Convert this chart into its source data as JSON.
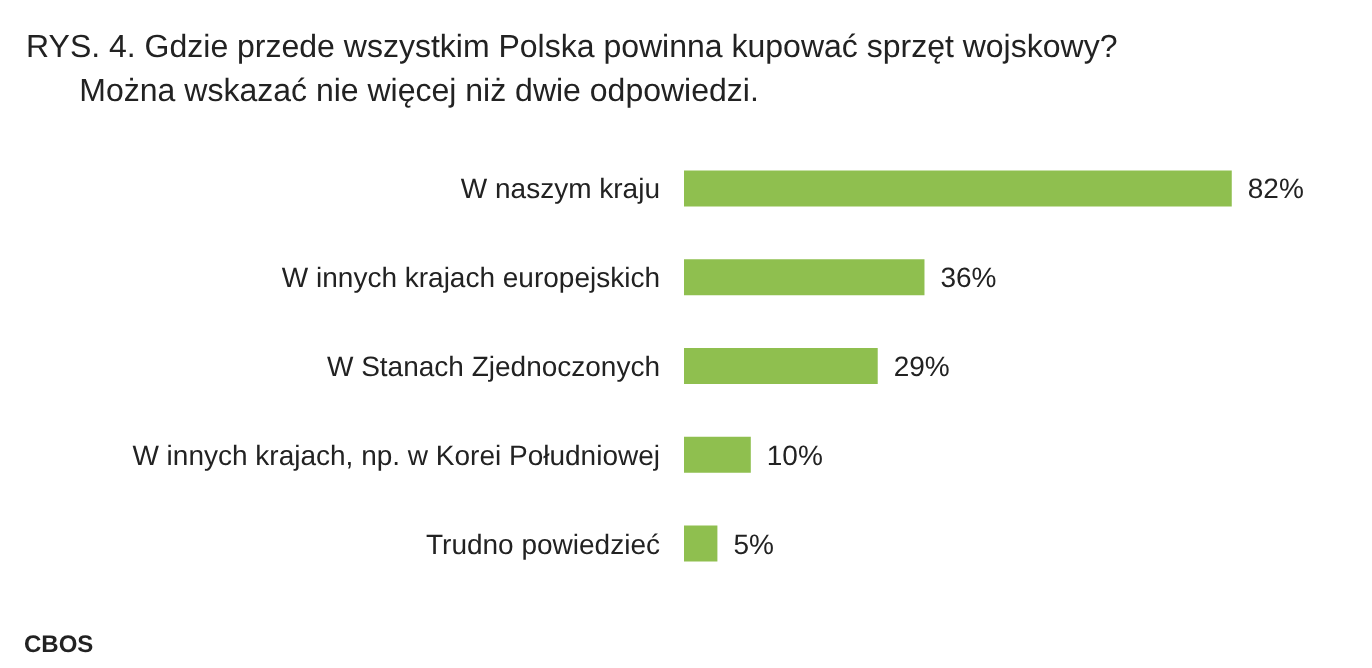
{
  "chart_data": {
    "type": "bar",
    "orientation": "horizontal",
    "title": "RYS. 4. Gdzie przede wszystkim Polska powinna kupować sprzęt wojskowy?\n      Można wskazać nie więcej niż dwie odpowiedzi.",
    "categories": [
      "W naszym kraju",
      "W innych krajach europejskich",
      "W Stanach Zjednoczonych",
      "W innych krajach, np. w Korei Południowej",
      "Trudno powiedzieć"
    ],
    "values": [
      82,
      36,
      29,
      10,
      5
    ],
    "value_labels": [
      "82%",
      "36%",
      "29%",
      "10%",
      "5%"
    ],
    "color": "#8fbf4f",
    "annotations": [
      "CBOS"
    ]
  }
}
